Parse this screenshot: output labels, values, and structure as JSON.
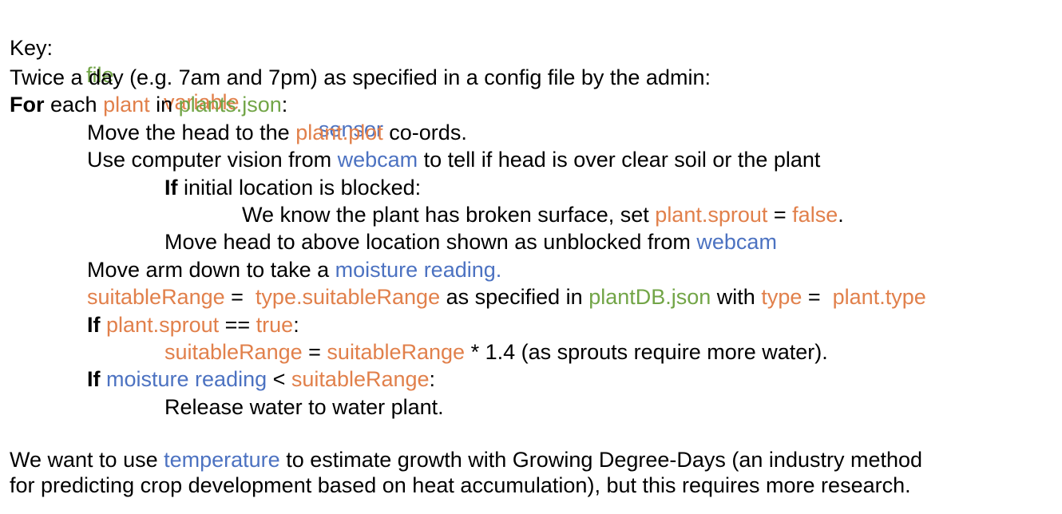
{
  "colors": {
    "file": "#72a547",
    "variable": "#e1804b",
    "sensor": "#4c72c1",
    "text": "#000000"
  },
  "key": {
    "label": "Key:",
    "file": "file",
    "variable": "variable",
    "sensor": "sensor"
  },
  "lines": [
    {
      "id": "schedule-intro",
      "indent": 0,
      "segments": [
        {
          "t": "Twice a day (e.g. 7am and 7pm) as specified in a config file by the admin:",
          "c": "text"
        }
      ]
    },
    {
      "id": "for-each-plant",
      "indent": 0,
      "segments": [
        {
          "t": "For",
          "c": "text",
          "b": true
        },
        {
          "t": " each ",
          "c": "text"
        },
        {
          "t": "plant",
          "c": "variable"
        },
        {
          "t": " in ",
          "c": "text"
        },
        {
          "t": "plants.json",
          "c": "file"
        },
        {
          "t": ":",
          "c": "text"
        }
      ]
    },
    {
      "id": "move-head",
      "indent": 1,
      "segments": [
        {
          "t": "Move the head to the ",
          "c": "text"
        },
        {
          "t": "plant.plot",
          "c": "variable"
        },
        {
          "t": " co-ords.",
          "c": "text"
        }
      ]
    },
    {
      "id": "use-vision",
      "indent": 1,
      "segments": [
        {
          "t": "Use computer vision from ",
          "c": "text"
        },
        {
          "t": "webcam",
          "c": "sensor"
        },
        {
          "t": " to tell if head is over clear soil or the plant",
          "c": "text"
        }
      ]
    },
    {
      "id": "if-blocked",
      "indent": 2,
      "segments": [
        {
          "t": "If",
          "c": "text",
          "b": true
        },
        {
          "t": " initial location is blocked:",
          "c": "text"
        }
      ]
    },
    {
      "id": "broken-surface",
      "indent": 3,
      "segments": [
        {
          "t": "We know the plant has broken surface, set ",
          "c": "text"
        },
        {
          "t": "plant.sprout",
          "c": "variable"
        },
        {
          "t": " = ",
          "c": "text"
        },
        {
          "t": "false",
          "c": "variable"
        },
        {
          "t": ".",
          "c": "text"
        }
      ]
    },
    {
      "id": "move-unblocked",
      "indent": 2,
      "segments": [
        {
          "t": "Move head to above location shown as unblocked from ",
          "c": "text"
        },
        {
          "t": "webcam",
          "c": "sensor"
        }
      ]
    },
    {
      "id": "move-arm",
      "indent": 1,
      "segments": [
        {
          "t": "Move arm down to take a ",
          "c": "text"
        },
        {
          "t": "moisture reading.",
          "c": "sensor"
        }
      ]
    },
    {
      "id": "suitable-range",
      "indent": 1,
      "segments": [
        {
          "t": "suitableRange",
          "c": "variable"
        },
        {
          "t": " =  ",
          "c": "text"
        },
        {
          "t": "type.suitableRange",
          "c": "variable"
        },
        {
          "t": " as specified in ",
          "c": "text"
        },
        {
          "t": "plantDB.json",
          "c": "file"
        },
        {
          "t": " with ",
          "c": "text"
        },
        {
          "t": "type",
          "c": "variable"
        },
        {
          "t": " =  ",
          "c": "text"
        },
        {
          "t": "plant.type",
          "c": "variable"
        }
      ]
    },
    {
      "id": "if-sprout",
      "indent": 1,
      "segments": [
        {
          "t": "If",
          "c": "text",
          "b": true
        },
        {
          "t": " ",
          "c": "text"
        },
        {
          "t": "plant.sprout",
          "c": "variable"
        },
        {
          "t": " == ",
          "c": "text"
        },
        {
          "t": "true",
          "c": "variable"
        },
        {
          "t": ":",
          "c": "text"
        }
      ]
    },
    {
      "id": "range-multiply",
      "indent": 2,
      "segments": [
        {
          "t": "suitableRange",
          "c": "variable"
        },
        {
          "t": " = ",
          "c": "text"
        },
        {
          "t": "suitableRange",
          "c": "variable"
        },
        {
          "t": " * 1.4 (as sprouts require more water).",
          "c": "text"
        }
      ]
    },
    {
      "id": "if-moisture",
      "indent": 1,
      "segments": [
        {
          "t": "If",
          "c": "text",
          "b": true
        },
        {
          "t": " ",
          "c": "text"
        },
        {
          "t": "moisture reading",
          "c": "sensor"
        },
        {
          "t": " < ",
          "c": "text"
        },
        {
          "t": "suitableRange",
          "c": "variable"
        },
        {
          "t": ":",
          "c": "text"
        }
      ]
    },
    {
      "id": "release-water",
      "indent": 2,
      "segments": [
        {
          "t": "Release water to water plant.",
          "c": "text"
        }
      ]
    }
  ],
  "footer": [
    {
      "id": "gdd-line-1",
      "segments": [
        {
          "t": "We want to use ",
          "c": "text"
        },
        {
          "t": "temperature",
          "c": "sensor"
        },
        {
          "t": " to estimate growth with Growing Degree-Days (an industry method",
          "c": "text"
        }
      ]
    },
    {
      "id": "gdd-line-2",
      "segments": [
        {
          "t": "for predicting crop development based on heat accumulation), but this requires more research.",
          "c": "text"
        }
      ]
    }
  ]
}
